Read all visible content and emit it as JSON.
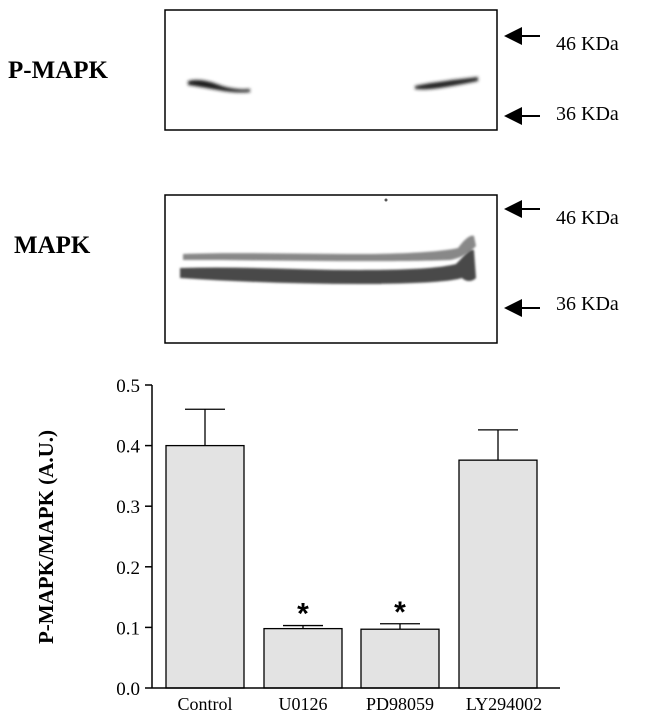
{
  "blots": {
    "top": {
      "label": "P-MAPK",
      "markers": [
        "46 KDa",
        "36 KDa"
      ]
    },
    "bottom": {
      "label": "MAPK",
      "markers": [
        "46 KDa",
        "36 KDa"
      ]
    }
  },
  "chart_data": {
    "type": "bar",
    "title": "",
    "xlabel": "",
    "ylabel": "P-MAPK/MAPK (A.U.)",
    "ylim": [
      0.0,
      0.5
    ],
    "yticks": [
      0.0,
      0.1,
      0.2,
      0.3,
      0.4,
      0.5
    ],
    "ytick_labels": [
      "0.0",
      "0.1",
      "0.2",
      "0.3",
      "0.4",
      "0.5"
    ],
    "categories": [
      "Control",
      "U0126",
      "PD98059",
      "LY294002"
    ],
    "values": [
      0.4,
      0.098,
      0.097,
      0.376
    ],
    "errors": [
      0.06,
      0.005,
      0.009,
      0.05
    ],
    "significance": [
      "",
      "*",
      "*",
      ""
    ],
    "bar_color": "#e3e3e3",
    "edge_color": "#000000"
  }
}
